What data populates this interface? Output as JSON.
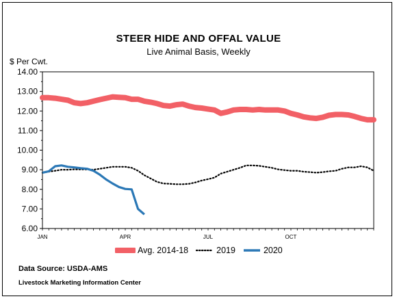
{
  "chart_data": {
    "type": "line",
    "title": "STEER HIDE AND OFFAL VALUE",
    "subtitle": "Live Animal Basis, Weekly",
    "ylabel": "$ Per Cwt.",
    "ylim": [
      6.0,
      14.0
    ],
    "yticks": [
      "14.00",
      "13.00",
      "12.00",
      "11.00",
      "10.00",
      "9.00",
      "8.00",
      "7.00",
      "6.00"
    ],
    "xlim": [
      1,
      53
    ],
    "xtick_labels": [
      {
        "label": "JAN",
        "week": 1
      },
      {
        "label": "APR",
        "week": 14
      },
      {
        "label": "JUL",
        "week": 27
      },
      {
        "label": "OCT",
        "week": 40
      }
    ],
    "grid": false,
    "legend": "bottom",
    "series": [
      {
        "name": "Avg. 2014-18",
        "color": "#f26066",
        "style": "thick",
        "x": [
          1,
          2,
          3,
          4,
          5,
          6,
          7,
          8,
          9,
          10,
          11,
          12,
          13,
          14,
          15,
          16,
          17,
          18,
          19,
          20,
          21,
          22,
          23,
          24,
          25,
          26,
          27,
          28,
          29,
          30,
          31,
          32,
          33,
          34,
          35,
          36,
          37,
          38,
          39,
          40,
          41,
          42,
          43,
          44,
          45,
          46,
          47,
          48,
          49,
          50,
          51,
          52,
          53
        ],
        "values": [
          12.68,
          12.68,
          12.65,
          12.6,
          12.55,
          12.42,
          12.38,
          12.42,
          12.5,
          12.58,
          12.65,
          12.72,
          12.7,
          12.68,
          12.6,
          12.6,
          12.5,
          12.45,
          12.38,
          12.28,
          12.25,
          12.32,
          12.35,
          12.25,
          12.18,
          12.15,
          12.1,
          12.05,
          11.88,
          11.95,
          12.05,
          12.08,
          12.08,
          12.05,
          12.08,
          12.05,
          12.05,
          12.05,
          12.0,
          11.88,
          11.8,
          11.7,
          11.65,
          11.62,
          11.68,
          11.78,
          11.82,
          11.82,
          11.8,
          11.72,
          11.62,
          11.55,
          11.55
        ]
      },
      {
        "name": "2019",
        "color": "#000000",
        "style": "dotted",
        "x": [
          1,
          2,
          3,
          4,
          5,
          6,
          7,
          8,
          9,
          10,
          11,
          12,
          13,
          14,
          15,
          16,
          17,
          18,
          19,
          20,
          21,
          22,
          23,
          24,
          25,
          26,
          27,
          28,
          29,
          30,
          31,
          32,
          33,
          34,
          35,
          36,
          37,
          38,
          39,
          40,
          41,
          42,
          43,
          44,
          45,
          46,
          47,
          48,
          49,
          50,
          51,
          52,
          53
        ],
        "values": [
          8.85,
          8.9,
          8.95,
          9.0,
          9.0,
          9.02,
          9.02,
          9.02,
          9.0,
          9.05,
          9.1,
          9.15,
          9.15,
          9.15,
          9.1,
          8.95,
          8.72,
          8.55,
          8.38,
          8.3,
          8.28,
          8.26,
          8.26,
          8.28,
          8.35,
          8.45,
          8.52,
          8.6,
          8.8,
          8.9,
          9.0,
          9.1,
          9.22,
          9.22,
          9.2,
          9.15,
          9.1,
          9.02,
          8.98,
          8.95,
          8.95,
          8.9,
          8.88,
          8.85,
          8.88,
          8.92,
          8.95,
          9.05,
          9.12,
          9.12,
          9.18,
          9.12,
          8.95
        ]
      },
      {
        "name": "2020",
        "color": "#2b78b6",
        "style": "solid",
        "x": [
          1,
          2,
          3,
          4,
          5,
          6,
          7,
          8,
          9,
          10,
          11,
          12,
          13,
          14,
          15,
          16,
          17
        ],
        "values": [
          8.85,
          8.92,
          9.18,
          9.22,
          9.15,
          9.12,
          9.08,
          9.05,
          8.95,
          8.75,
          8.5,
          8.3,
          8.12,
          8.02,
          8.0,
          7.0,
          6.72
        ]
      }
    ]
  },
  "source_text": "Data Source:  USDA-AMS",
  "footer_text": "Livestock Marketing Information Center"
}
